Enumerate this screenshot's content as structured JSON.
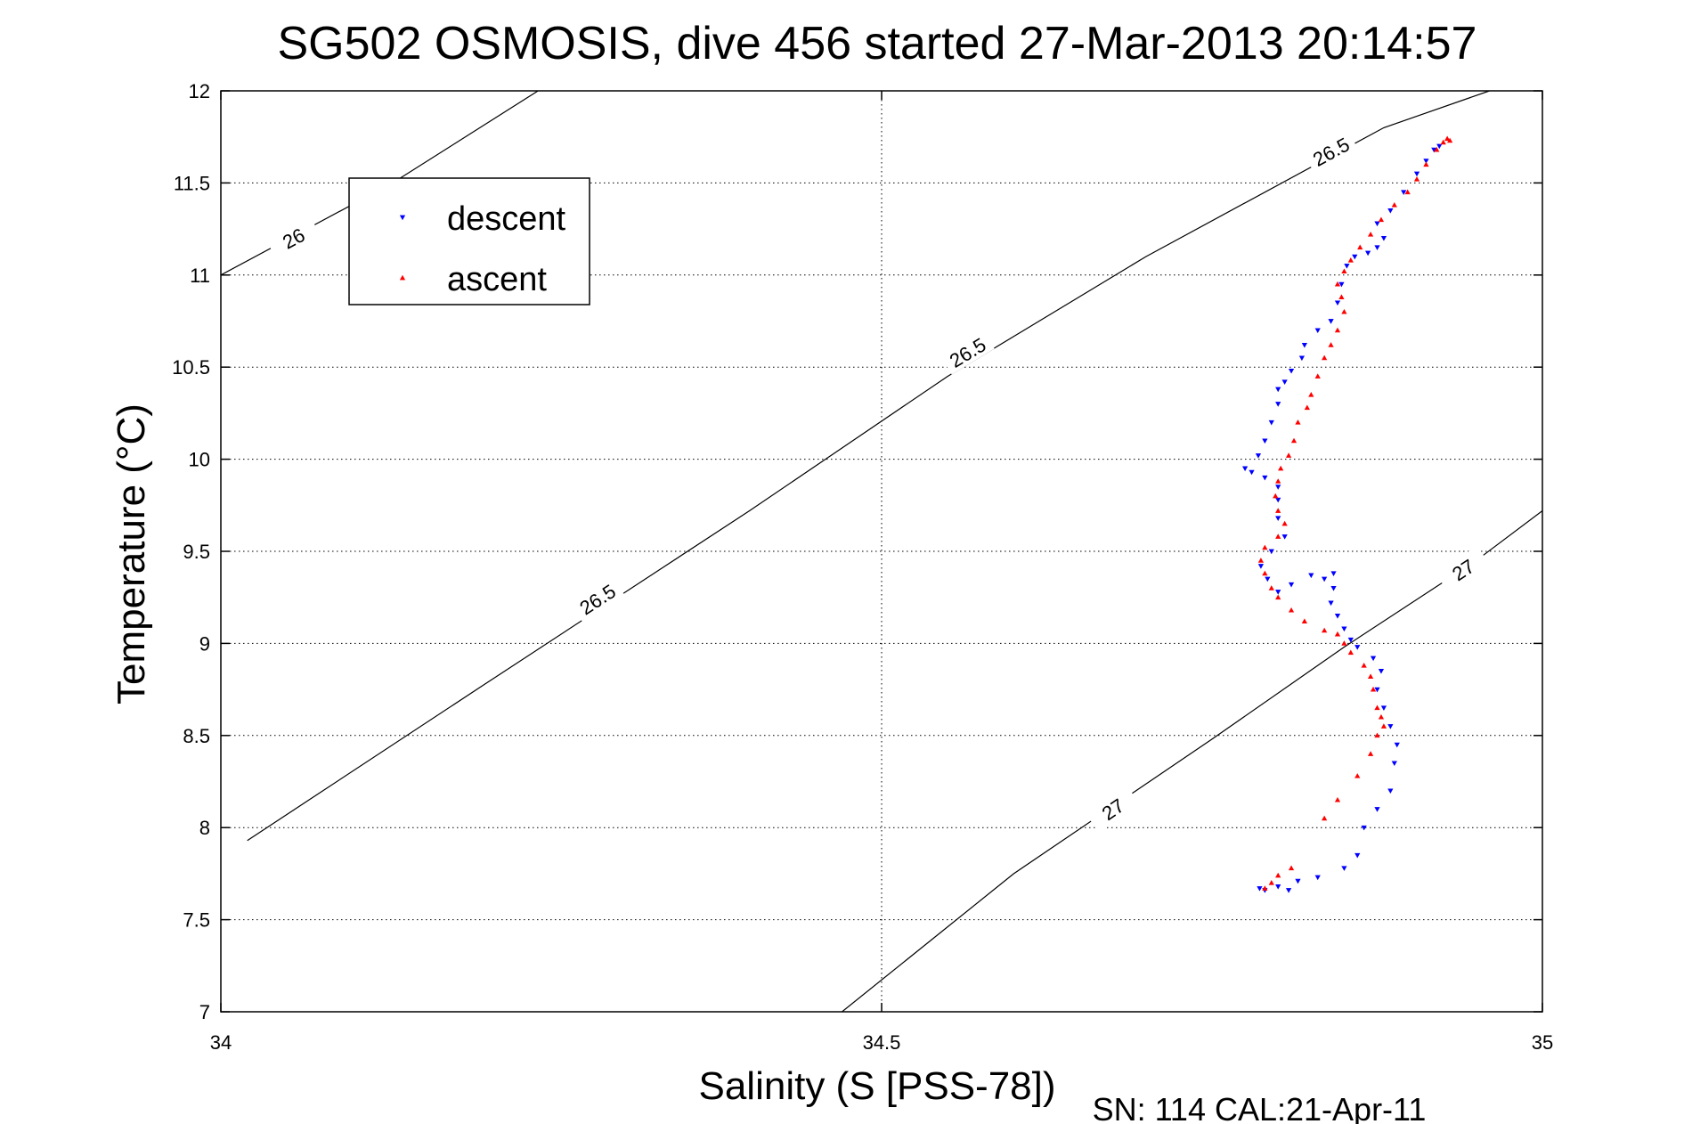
{
  "chart_data": {
    "type": "scatter",
    "title": "SG502 OSMOSIS, dive 456 started 27-Mar-2013 20:14:57",
    "xlabel": "Salinity (S [PSS-78])",
    "ylabel": "Temperature (°C)",
    "footer": "SN: 114  CAL:21-Apr-11",
    "xlim": [
      34,
      35
    ],
    "ylim": [
      7,
      12
    ],
    "x_ticks": [
      "34",
      "34.5",
      "35"
    ],
    "x_tick_values": [
      34,
      34.5,
      35
    ],
    "y_ticks": [
      "7",
      "7.5",
      "8",
      "8.5",
      "9",
      "9.5",
      "10",
      "10.5",
      "11",
      "11.5",
      "12"
    ],
    "y_tick_values": [
      7,
      7.5,
      8,
      8.5,
      9,
      9.5,
      10,
      10.5,
      11,
      11.5,
      12
    ],
    "grid": true,
    "legend_position": "top-left",
    "isopycnals": [
      {
        "label": "26",
        "points": [
          [
            34.0,
            11.0
          ],
          [
            34.13,
            11.5
          ],
          [
            34.24,
            12.0
          ]
        ],
        "label_at": [
          34.055,
          11.2
        ]
      },
      {
        "label": "26.5",
        "points": [
          [
            34.02,
            7.93
          ],
          [
            34.2,
            8.78
          ],
          [
            34.4,
            9.72
          ],
          [
            34.55,
            10.45
          ],
          [
            34.7,
            11.1
          ],
          [
            34.88,
            11.8
          ],
          [
            34.96,
            12.0
          ]
        ],
        "label_labels": [
          "26.5",
          "26.5",
          "26.5"
        ],
        "label_at_list": [
          [
            34.285,
            9.24
          ],
          [
            34.565,
            10.58
          ],
          [
            34.84,
            11.67
          ]
        ]
      },
      {
        "label": "27",
        "points": [
          [
            34.47,
            7.0
          ],
          [
            34.6,
            7.75
          ],
          [
            34.75,
            8.48
          ],
          [
            34.85,
            8.98
          ],
          [
            34.95,
            9.45
          ],
          [
            35.0,
            9.72
          ]
        ],
        "label_labels": [
          "27",
          "27"
        ],
        "label_at_list": [
          [
            34.675,
            8.1
          ],
          [
            34.94,
            9.4
          ]
        ]
      }
    ],
    "series": [
      {
        "name": "descent",
        "color": "#0000ff",
        "marker": "triangle-down",
        "values": [
          [
            34.786,
            7.67
          ],
          [
            34.79,
            7.66
          ],
          [
            34.8,
            7.68
          ],
          [
            34.808,
            7.66
          ],
          [
            34.815,
            7.71
          ],
          [
            34.83,
            7.73
          ],
          [
            34.85,
            7.78
          ],
          [
            34.86,
            7.85
          ],
          [
            34.865,
            8.0
          ],
          [
            34.875,
            8.1
          ],
          [
            34.885,
            8.2
          ],
          [
            34.888,
            8.35
          ],
          [
            34.89,
            8.45
          ],
          [
            34.885,
            8.55
          ],
          [
            34.88,
            8.65
          ],
          [
            34.875,
            8.75
          ],
          [
            34.878,
            8.85
          ],
          [
            34.872,
            8.92
          ],
          [
            34.86,
            8.98
          ],
          [
            34.855,
            9.02
          ],
          [
            34.85,
            9.08
          ],
          [
            34.845,
            9.15
          ],
          [
            34.84,
            9.22
          ],
          [
            34.842,
            9.3
          ],
          [
            34.835,
            9.35
          ],
          [
            34.842,
            9.38
          ],
          [
            34.825,
            9.37
          ],
          [
            34.81,
            9.32
          ],
          [
            34.8,
            9.28
          ],
          [
            34.792,
            9.35
          ],
          [
            34.787,
            9.42
          ],
          [
            34.795,
            9.5
          ],
          [
            34.805,
            9.58
          ],
          [
            34.8,
            9.68
          ],
          [
            34.8,
            9.78
          ],
          [
            34.8,
            9.85
          ],
          [
            34.79,
            9.9
          ],
          [
            34.78,
            9.93
          ],
          [
            34.775,
            9.95
          ],
          [
            34.785,
            10.02
          ],
          [
            34.79,
            10.1
          ],
          [
            34.795,
            10.2
          ],
          [
            34.8,
            10.3
          ],
          [
            34.8,
            10.38
          ],
          [
            34.805,
            10.42
          ],
          [
            34.81,
            10.48
          ],
          [
            34.818,
            10.55
          ],
          [
            34.82,
            10.62
          ],
          [
            34.83,
            10.7
          ],
          [
            34.84,
            10.75
          ],
          [
            34.845,
            10.85
          ],
          [
            34.848,
            10.95
          ],
          [
            34.852,
            11.05
          ],
          [
            34.858,
            11.1
          ],
          [
            34.868,
            11.12
          ],
          [
            34.875,
            11.15
          ],
          [
            34.88,
            11.2
          ],
          [
            34.875,
            11.28
          ],
          [
            34.885,
            11.35
          ],
          [
            34.895,
            11.45
          ],
          [
            34.905,
            11.55
          ],
          [
            34.912,
            11.62
          ],
          [
            34.918,
            11.68
          ],
          [
            34.922,
            11.7
          ]
        ]
      },
      {
        "name": "ascent",
        "color": "#ff0000",
        "marker": "triangle-up",
        "values": [
          [
            34.79,
            7.67
          ],
          [
            34.795,
            7.7
          ],
          [
            34.8,
            7.74
          ],
          [
            34.81,
            7.78
          ],
          [
            34.835,
            8.05
          ],
          [
            34.845,
            8.15
          ],
          [
            34.86,
            8.28
          ],
          [
            34.87,
            8.4
          ],
          [
            34.875,
            8.5
          ],
          [
            34.88,
            8.55
          ],
          [
            34.878,
            8.6
          ],
          [
            34.875,
            8.65
          ],
          [
            34.872,
            8.75
          ],
          [
            34.87,
            8.82
          ],
          [
            34.865,
            8.88
          ],
          [
            34.855,
            8.95
          ],
          [
            34.85,
            9.0
          ],
          [
            34.845,
            9.05
          ],
          [
            34.835,
            9.07
          ],
          [
            34.82,
            9.12
          ],
          [
            34.81,
            9.18
          ],
          [
            34.8,
            9.25
          ],
          [
            34.795,
            9.3
          ],
          [
            34.79,
            9.38
          ],
          [
            34.787,
            9.45
          ],
          [
            34.79,
            9.52
          ],
          [
            34.8,
            9.58
          ],
          [
            34.805,
            9.65
          ],
          [
            34.8,
            9.72
          ],
          [
            34.798,
            9.8
          ],
          [
            34.8,
            9.88
          ],
          [
            34.802,
            9.95
          ],
          [
            34.808,
            10.02
          ],
          [
            34.812,
            10.1
          ],
          [
            34.815,
            10.2
          ],
          [
            34.822,
            10.28
          ],
          [
            34.825,
            10.35
          ],
          [
            34.83,
            10.45
          ],
          [
            34.835,
            10.55
          ],
          [
            34.84,
            10.62
          ],
          [
            34.845,
            10.7
          ],
          [
            34.85,
            10.8
          ],
          [
            34.848,
            10.88
          ],
          [
            34.845,
            10.95
          ],
          [
            34.85,
            11.02
          ],
          [
            34.855,
            11.08
          ],
          [
            34.862,
            11.15
          ],
          [
            34.87,
            11.22
          ],
          [
            34.878,
            11.3
          ],
          [
            34.888,
            11.38
          ],
          [
            34.898,
            11.45
          ],
          [
            34.905,
            11.52
          ],
          [
            34.912,
            11.6
          ],
          [
            34.92,
            11.68
          ],
          [
            34.925,
            11.72
          ],
          [
            34.928,
            11.74
          ],
          [
            34.93,
            11.73
          ]
        ]
      }
    ]
  }
}
